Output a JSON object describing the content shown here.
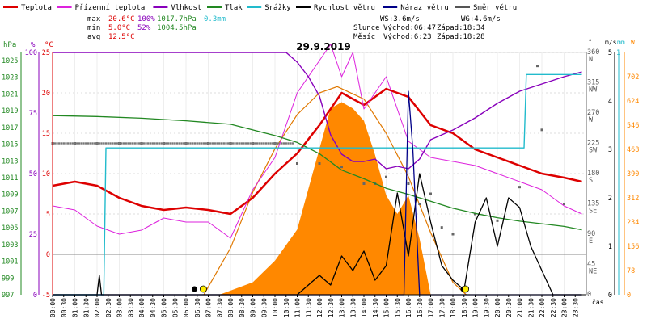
{
  "chart_data": {
    "type": "line",
    "title": "29.9.2019",
    "legend": [
      {
        "label": "Teplota",
        "color": "#dd0000"
      },
      {
        "label": "Přízemní teplota",
        "color": "#dd22dd"
      },
      {
        "label": "Vlhkost",
        "color": "#8800bb"
      },
      {
        "label": "Tlak",
        "color": "#228822"
      },
      {
        "label": "Srážky",
        "color": "#22bbcc"
      },
      {
        "label": "Rychlost větru",
        "color": "#000000"
      },
      {
        "label": "Náraz větru",
        "color": "#000088"
      },
      {
        "label": "Směr větru",
        "color": "#555555"
      }
    ],
    "stats": {
      "max_label": "max",
      "min_label": "min",
      "avg_label": "avg",
      "max_temp": "20.6°C",
      "max_hum": "100%",
      "max_press": "1017.7hPa",
      "rain": "0.3mm",
      "min_temp": "5.0°C",
      "min_hum": "52%",
      "min_press": "1004.5hPa",
      "avg_temp": "12.5°C",
      "ws": "WS:3.6m/s",
      "wg": "WG:4.6m/s",
      "sun_label": "Slunce",
      "sunrise": "Východ:06:47",
      "sunset": "Západ:18:34",
      "moon_label": "Měsíc",
      "moonrise": "Východ:6:23",
      "moonset": "Západ:18:28"
    },
    "axes": {
      "hpa_title": "hPa",
      "pct_title": "%",
      "degc_title": "°C",
      "deg_title": "°",
      "ms_title": "m/s",
      "mm_title": "mm",
      "w_title": "W",
      "hpa_ticks": [
        "1025",
        "1023",
        "1021",
        "1019",
        "1017",
        "1015",
        "1013",
        "1011",
        "1009",
        "1007",
        "1005",
        "1003",
        "1001",
        "999",
        "997"
      ],
      "pct_ticks": [
        "100",
        "75",
        "50",
        "25",
        "0"
      ],
      "degc_ticks": [
        "25",
        "20",
        "15",
        "10",
        "5",
        "0",
        "-5"
      ],
      "dir_ticks": [
        {
          "deg": "360",
          "dir": "N"
        },
        {
          "deg": "315",
          "dir": "NW"
        },
        {
          "deg": "270",
          "dir": "W"
        },
        {
          "deg": "225",
          "dir": "SW"
        },
        {
          "deg": "180",
          "dir": "S"
        },
        {
          "deg": "135",
          "dir": "SE"
        },
        {
          "deg": "90",
          "dir": "E"
        },
        {
          "deg": "45",
          "dir": "NE"
        },
        {
          "deg": "0",
          "dir": ""
        }
      ],
      "ms_ticks": [
        "5",
        "4",
        "3",
        "2",
        "1",
        "0"
      ],
      "mm_ticks": [
        "1"
      ],
      "w_ticks": [
        "702",
        "624",
        "546",
        "468",
        "390",
        "312",
        "234",
        "156",
        "78",
        "0"
      ],
      "time_label": "čas",
      "time_ticks": [
        "00:00",
        "00:30",
        "01:00",
        "01:30",
        "02:00",
        "02:30",
        "03:00",
        "03:30",
        "04:00",
        "04:30",
        "05:00",
        "05:30",
        "06:00",
        "06:30",
        "07:00",
        "07:30",
        "08:00",
        "08:30",
        "09:00",
        "09:30",
        "10:00",
        "10:30",
        "11:00",
        "11:30",
        "12:00",
        "12:30",
        "13:00",
        "13:30",
        "14:00",
        "14:30",
        "15:00",
        "15:30",
        "16:00",
        "16:30",
        "17:00",
        "17:30",
        "18:00",
        "18:30",
        "19:00",
        "19:30",
        "20:00",
        "20:30",
        "21:00",
        "21:30",
        "22:00",
        "22:30",
        "23:00",
        "23:30"
      ]
    },
    "x_range_hours": [
      0,
      24
    ],
    "temp_range_c": [
      -5,
      25
    ],
    "series": [
      {
        "name": "Teplota",
        "unit": "°C",
        "hours": [
          0,
          1,
          2,
          3,
          4,
          5,
          6,
          7,
          8,
          9,
          10,
          11,
          12,
          13,
          14,
          15,
          16,
          17,
          18,
          19,
          20,
          21,
          22,
          23,
          23.8
        ],
        "values": [
          8.5,
          9.0,
          8.5,
          7.0,
          6.0,
          5.5,
          5.8,
          5.5,
          5.0,
          7.0,
          10.0,
          12.5,
          16.0,
          20.0,
          18.5,
          20.5,
          19.5,
          16.0,
          15.0,
          13.0,
          12.0,
          11.0,
          10.0,
          9.5,
          9.0
        ]
      },
      {
        "name": "Přízemní teplota",
        "unit": "°C",
        "hours": [
          0,
          1,
          2,
          3,
          4,
          5,
          6,
          7,
          8,
          9,
          10,
          11,
          12,
          12.5,
          13,
          13.5,
          14,
          15,
          16,
          17,
          18,
          19,
          20,
          21,
          22,
          23,
          23.8
        ],
        "values": [
          6.0,
          5.5,
          3.5,
          2.5,
          3.0,
          4.5,
          4.0,
          4.0,
          2.0,
          8.0,
          12.0,
          20.0,
          24.0,
          26.0,
          22.0,
          25.0,
          18.0,
          22.0,
          14.0,
          12.0,
          11.5,
          11.0,
          10.0,
          9.0,
          8.0,
          6.0,
          5.0
        ]
      },
      {
        "name": "Vlhkost",
        "unit": "%",
        "hours": [
          0,
          10.5,
          11,
          11.5,
          12,
          12.5,
          13,
          13.5,
          14,
          14.5,
          15,
          15.5,
          16,
          16.5,
          17,
          18,
          19,
          20,
          21,
          22,
          23,
          23.8
        ],
        "values": [
          100,
          100,
          96,
          90,
          82,
          66,
          58,
          55,
          55,
          56,
          52,
          53,
          52,
          56,
          64,
          68,
          73,
          79,
          84,
          87,
          90,
          92
        ]
      },
      {
        "name": "Tlak",
        "unit": "hPa",
        "hours": [
          0,
          2,
          4,
          6,
          8,
          10,
          11,
          12,
          13,
          14,
          15,
          16,
          17,
          18,
          19,
          20,
          21,
          22,
          23,
          23.8
        ],
        "values": [
          1017.7,
          1017.6,
          1017.4,
          1017.1,
          1016.7,
          1015.4,
          1014.6,
          1013.3,
          1011.4,
          1010.4,
          1009.3,
          1008.6,
          1007.8,
          1007.0,
          1006.4,
          1005.9,
          1005.5,
          1005.2,
          1004.9,
          1004.5
        ]
      },
      {
        "name": "Srážky",
        "unit": "mm",
        "hours": [
          0,
          2.3,
          2.4,
          21.2,
          21.3,
          23.8
        ],
        "values": [
          0,
          0,
          0.2,
          0.2,
          0.3,
          0.3
        ]
      },
      {
        "name": "Rychlost větru",
        "unit": "m/s",
        "hours": [
          0,
          2,
          2.1,
          2.2,
          11,
          11.5,
          12,
          12.5,
          13,
          13.5,
          14,
          14.5,
          15,
          15.5,
          16,
          16.5,
          17,
          17.5,
          18,
          18.5,
          19,
          19.5,
          20,
          20.5,
          21,
          21.5,
          22,
          22.5,
          23,
          23.8
        ],
        "values": [
          0,
          0,
          0.4,
          0,
          0,
          0.2,
          0.4,
          0.2,
          0.8,
          0.5,
          0.9,
          0.3,
          0.6,
          2.1,
          0.8,
          2.5,
          1.5,
          0.6,
          0.3,
          0.1,
          1.5,
          2.0,
          1.0,
          2.0,
          1.8,
          1.0,
          0.5,
          0,
          0,
          0
        ]
      },
      {
        "name": "Náraz větru",
        "unit": "m/s",
        "hours": [
          0,
          15.8,
          16.0,
          16.2,
          16.5,
          23.8
        ],
        "values": [
          0,
          0,
          4.2,
          3.0,
          0,
          0
        ]
      }
    ],
    "solar_radiation": {
      "unit": "W",
      "hours": [
        7.5,
        9,
        10,
        11,
        12,
        12.5,
        13,
        13.5,
        14,
        14.5,
        15,
        15.5,
        16,
        16.5,
        17
      ],
      "values": [
        0,
        40,
        110,
        210,
        470,
        600,
        620,
        600,
        560,
        450,
        320,
        260,
        320,
        180,
        0
      ]
    },
    "theoretical_radiation": {
      "unit": "W",
      "hours": [
        6.8,
        8,
        9,
        10,
        11,
        12,
        12.8,
        14,
        15,
        16,
        17,
        18,
        18.6
      ],
      "values": [
        0,
        150,
        330,
        470,
        580,
        650,
        670,
        630,
        520,
        380,
        200,
        40,
        0
      ]
    },
    "wind_direction": {
      "unit": "°",
      "points": [
        [
          0,
          225
        ],
        [
          1,
          225
        ],
        [
          2,
          225
        ],
        [
          3,
          225
        ],
        [
          4,
          225
        ],
        [
          5,
          225
        ],
        [
          6,
          225
        ],
        [
          7,
          225
        ],
        [
          8,
          225
        ],
        [
          9,
          225
        ],
        [
          10,
          225
        ],
        [
          11,
          195
        ],
        [
          12,
          195
        ],
        [
          13,
          190
        ],
        [
          14,
          165
        ],
        [
          14.5,
          165
        ],
        [
          15,
          175
        ],
        [
          16,
          165
        ],
        [
          16.5,
          135
        ],
        [
          17,
          150
        ],
        [
          17.5,
          100
        ],
        [
          18,
          90
        ],
        [
          19,
          120
        ],
        [
          20,
          110
        ],
        [
          21,
          160
        ],
        [
          22,
          245
        ],
        [
          23,
          135
        ],
        [
          21.8,
          340
        ]
      ]
    }
  }
}
